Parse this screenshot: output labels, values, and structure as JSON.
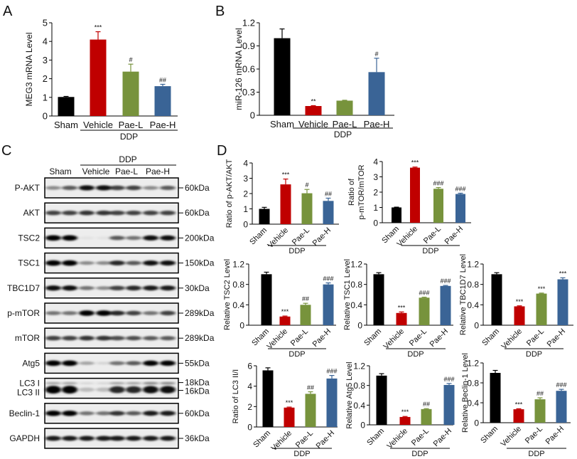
{
  "panels": {
    "a": "A",
    "b": "B",
    "c": "C",
    "d": "D"
  },
  "colors": {
    "Sham": "#000000",
    "Vehicle": "#c00000",
    "Pae-L": "#77933c",
    "Pae-H": "#3a6496"
  },
  "blot": {
    "group_label": "DDP",
    "lanes": [
      "Sham",
      "Vehicle",
      "Pae-L",
      "Pae-H"
    ],
    "rows": [
      {
        "label": "P-AKT",
        "size": "60kDa",
        "intensity": [
          0.4,
          0.6,
          0.9,
          0.9,
          0.7,
          0.7,
          0.4,
          0.6
        ]
      },
      {
        "label": "AKT",
        "size": "60kDa",
        "intensity": [
          0.7,
          0.7,
          0.75,
          0.75,
          0.7,
          0.7,
          0.7,
          0.7
        ]
      },
      {
        "label": "TSC2",
        "size": "200kDa",
        "intensity": [
          1,
          1,
          0.05,
          0.05,
          0.6,
          0.5,
          0.9,
          0.9
        ]
      },
      {
        "label": "TSC1",
        "size": "150kDa",
        "intensity": [
          1,
          1,
          0.4,
          0.4,
          0.8,
          0.6,
          0.9,
          0.9
        ]
      },
      {
        "label": "TBC1D7",
        "size": "30kDa",
        "intensity": [
          0.9,
          0.9,
          0.5,
          0.4,
          0.7,
          0.8,
          0.85,
          0.85
        ]
      },
      {
        "label": "p-mTOR",
        "size": "289kDa",
        "intensity": [
          0.5,
          0.5,
          1,
          1,
          0.8,
          0.7,
          0.5,
          0.7
        ]
      },
      {
        "label": "mTOR",
        "size": "289kDa",
        "intensity": [
          0.7,
          0.7,
          0.75,
          0.75,
          0.65,
          0.65,
          0.6,
          0.6
        ]
      },
      {
        "label": "Atg5",
        "size": "55kDa",
        "intensity": [
          1,
          1,
          0.3,
          0.1,
          0.5,
          0.6,
          0.95,
          0.95
        ]
      },
      {
        "label": "LC3 I",
        "label2": "LC3 II",
        "size": "18kDa",
        "size2": "16kDa",
        "intensity": [
          0.3,
          0.3,
          0.1,
          0.1,
          0.3,
          0.3,
          0.4,
          0.4
        ],
        "intensity2": [
          1,
          1,
          0.2,
          0.2,
          0.8,
          0.8,
          0.9,
          0.9
        ]
      },
      {
        "label": "Beclin-1",
        "size": "60kDa",
        "intensity": [
          1,
          1,
          0.5,
          0.5,
          0.75,
          0.6,
          0.85,
          0.85
        ]
      },
      {
        "label": "GAPDH",
        "size": "36kDa",
        "intensity": [
          0.85,
          0.85,
          0.85,
          0.85,
          0.85,
          0.85,
          0.85,
          0.85
        ]
      }
    ]
  },
  "chart_data": [
    {
      "type": "bar",
      "panel": "A",
      "ylabel": "MEG3 mRNA Level",
      "categories": [
        "Sham",
        "Vehicle",
        "Pae-L",
        "Pae-H"
      ],
      "values": [
        1.02,
        4.1,
        2.38,
        1.6
      ],
      "errors": [
        0.03,
        0.42,
        0.4,
        0.1
      ],
      "significance": [
        "",
        "***",
        "#",
        "##"
      ],
      "ylim": [
        0,
        5
      ],
      "yticks": [
        "0",
        "1",
        "2",
        "3",
        "4",
        "5"
      ],
      "group_label": "DDP"
    },
    {
      "type": "bar",
      "panel": "B",
      "ylabel": "miR-126 mRNA Level",
      "categories": [
        "Sham",
        "Vehicle",
        "Pae-L",
        "Pae-H"
      ],
      "values": [
        1.0,
        0.12,
        0.19,
        0.56
      ],
      "errors": [
        0.12,
        0.005,
        0.005,
        0.18
      ],
      "significance": [
        "",
        "**",
        "",
        "#"
      ],
      "ylim": [
        0,
        1.2
      ],
      "yticks": [
        "0",
        "0.3",
        "0.6",
        "0.9",
        "1.2"
      ],
      "group_label": "DDP"
    },
    {
      "type": "bar",
      "panel": "D",
      "ylabel": "Ratio of p-AKT/AKT",
      "categories": [
        "Sham",
        "Vehicle",
        "Pae-L",
        "Pae-H"
      ],
      "values": [
        1.0,
        2.6,
        2.02,
        1.52
      ],
      "errors": [
        0.1,
        0.35,
        0.25,
        0.18
      ],
      "significance": [
        "",
        "***",
        "#",
        "##"
      ],
      "ylim": [
        0,
        4
      ],
      "yticks": [
        "0",
        "1",
        "2",
        "3",
        "4"
      ],
      "group_label": "DDP"
    },
    {
      "type": "bar",
      "panel": "D",
      "ylabel": "Ratio of",
      "ylabel2": "p-mTOR/mTOR",
      "categories": [
        "Sham",
        "Vehicle",
        "Pae-L",
        "Pae-H"
      ],
      "values": [
        1.0,
        3.6,
        2.22,
        1.88
      ],
      "errors": [
        0.02,
        0.04,
        0.08,
        0.05
      ],
      "significance": [
        "",
        "***",
        "###",
        "###"
      ],
      "ylim": [
        0,
        4
      ],
      "yticks": [
        "0",
        "1",
        "2",
        "3",
        "4"
      ],
      "group_label": "DDP"
    },
    {
      "type": "bar",
      "panel": "D",
      "ylabel": "Relative TSC2 Level",
      "categories": [
        "Sham",
        "Vehicle",
        "Pae-L",
        "Pae-H"
      ],
      "values": [
        1.0,
        0.17,
        0.4,
        0.8
      ],
      "errors": [
        0.04,
        0.01,
        0.03,
        0.03
      ],
      "significance": [
        "",
        "***",
        "##",
        "###"
      ],
      "ylim": [
        0,
        1.2
      ],
      "yticks": [
        "0",
        "0.4",
        "0.8",
        "1.2"
      ],
      "group_label": "DDP"
    },
    {
      "type": "bar",
      "panel": "D",
      "ylabel": "Relative TSC1 Level",
      "categories": [
        "Sham",
        "Vehicle",
        "Pae-L",
        "Pae-H"
      ],
      "values": [
        1.0,
        0.24,
        0.54,
        0.77
      ],
      "errors": [
        0.03,
        0.02,
        0.01,
        0.01
      ],
      "significance": [
        "",
        "***",
        "###",
        "###"
      ],
      "ylim": [
        0,
        1.2
      ],
      "yticks": [
        "0",
        "0.4",
        "0.8",
        "1.2"
      ],
      "group_label": "DDP"
    },
    {
      "type": "bar",
      "panel": "D",
      "ylabel": "Relative TBC1D7 Level",
      "categories": [
        "Sham",
        "Vehicle",
        "Pae-L",
        "Pae-H"
      ],
      "values": [
        1.0,
        0.37,
        0.62,
        0.9
      ],
      "errors": [
        0.03,
        0.01,
        0.01,
        0.03
      ],
      "significance": [
        "",
        "***",
        "***",
        "***"
      ],
      "ylim": [
        0,
        1.2
      ],
      "yticks": [
        "0",
        "0.4",
        "0.8",
        "1.2"
      ],
      "group_label": "DDP"
    },
    {
      "type": "bar",
      "panel": "D",
      "ylabel": "Ratio of LC3 II/I",
      "categories": [
        "Sham",
        "Vehicle",
        "Pae-L",
        "Pae-H"
      ],
      "values": [
        5.55,
        1.9,
        3.25,
        4.75
      ],
      "errors": [
        0.25,
        0.05,
        0.2,
        0.3
      ],
      "significance": [
        "",
        "***",
        "##",
        "###"
      ],
      "ylim": [
        0,
        6
      ],
      "yticks": [
        "0",
        "2",
        "4",
        "6"
      ],
      "group_label": "DDP"
    },
    {
      "type": "bar",
      "panel": "D",
      "ylabel": "Relative Atg5 Level",
      "categories": [
        "Sham",
        "Vehicle",
        "Pae-L",
        "Pae-H"
      ],
      "values": [
        1.0,
        0.16,
        0.32,
        0.81
      ],
      "errors": [
        0.04,
        0.01,
        0.01,
        0.03
      ],
      "significance": [
        "",
        "***",
        "##",
        "###"
      ],
      "ylim": [
        0,
        1.2
      ],
      "yticks": [
        "0",
        "0.4",
        "0.8",
        "1.2"
      ],
      "group_label": "DDP"
    },
    {
      "type": "bar",
      "panel": "D",
      "ylabel": "Relative Beclin-1 Level",
      "categories": [
        "Sham",
        "Vehicle",
        "Pae-L",
        "Pae-H"
      ],
      "values": [
        1.0,
        0.27,
        0.47,
        0.64
      ],
      "errors": [
        0.05,
        0.01,
        0.03,
        0.03
      ],
      "significance": [
        "",
        "***",
        "##",
        "###"
      ],
      "ylim": [
        0,
        1.2
      ],
      "yticks": [
        "0",
        "0.4",
        "0.8",
        "1.2"
      ],
      "group_label": "DDP"
    }
  ]
}
